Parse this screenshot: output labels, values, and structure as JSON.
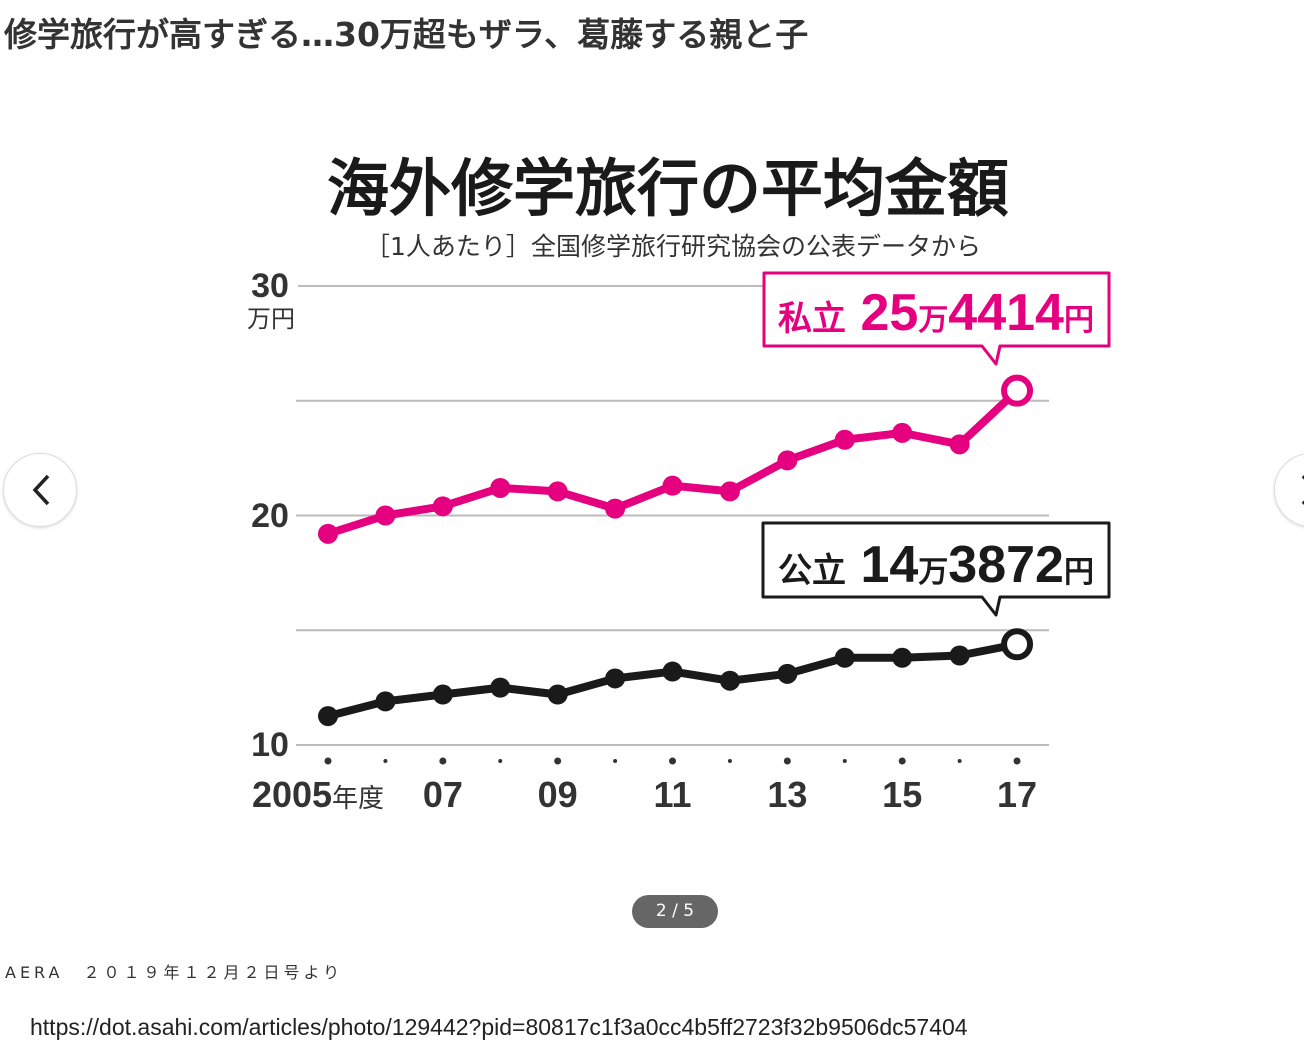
{
  "headline": "修学旅行が高すぎる…30万超もザラ、葛藤する親と子",
  "pager": "2 / 5",
  "caption": "AERA　２０１９年１２月２日号より",
  "url": "https://dot.asahi.com/articles/photo/129442?pid=80817c1f3a0cc4b5ff2723f32b9506dc57404",
  "nav": {
    "prev_icon": "chevron-left-icon",
    "next_icon": "chevron-right-icon"
  },
  "chart_data": {
    "type": "line",
    "title": "海外修学旅行の平均金額",
    "subtitle": "［1人あたり］全国修学旅行研究協会の公表データから",
    "ylabel": "万円",
    "ylim": [
      10,
      30
    ],
    "yticks": [
      "30",
      "20",
      "10"
    ],
    "ygrid": [
      10,
      15,
      20,
      25,
      30
    ],
    "x": [
      2005,
      2006,
      2007,
      2008,
      2009,
      2010,
      2011,
      2012,
      2013,
      2014,
      2015,
      2016,
      2017
    ],
    "xtick_labels": [
      {
        "year": 2005,
        "label": "2005",
        "suffix": "年度"
      },
      {
        "year": 2007,
        "label": "07"
      },
      {
        "year": 2009,
        "label": "09"
      },
      {
        "year": 2011,
        "label": "11"
      },
      {
        "year": 2013,
        "label": "13"
      },
      {
        "year": 2015,
        "label": "15"
      },
      {
        "year": 2017,
        "label": "17"
      }
    ],
    "series": [
      {
        "name": "私立",
        "color": "#e4007f",
        "values": [
          19.2,
          20.0,
          20.4,
          21.2,
          21.05,
          20.3,
          21.3,
          21.05,
          22.4,
          23.3,
          23.6,
          23.1,
          25.44
        ],
        "callout": {
          "label": "私立",
          "amount_man": "25",
          "man": "万",
          "amount_rest": "4414",
          "yen": "円"
        }
      },
      {
        "name": "公立",
        "color": "#1a1a1a",
        "values": [
          11.26,
          11.9,
          12.2,
          12.5,
          12.2,
          12.9,
          13.2,
          12.8,
          13.1,
          13.8,
          13.8,
          13.9,
          14.39
        ],
        "callout": {
          "label": "公立",
          "amount_man": "14",
          "man": "万",
          "amount_rest": "3872",
          "yen": "円"
        }
      }
    ]
  }
}
